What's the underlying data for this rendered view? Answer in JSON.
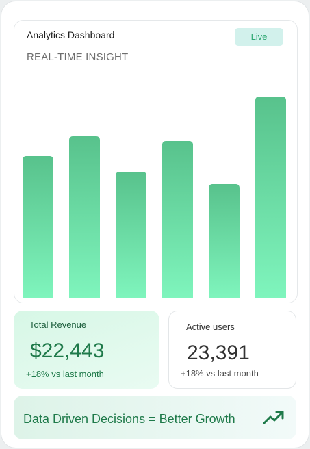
{
  "dashboard": {
    "title": "Analytics Dashboard",
    "subtitle": "REAL-TIME INSIGHT",
    "live_badge": "Live"
  },
  "chart_data": {
    "type": "bar",
    "categories": [
      "",
      "",
      "",
      "",
      "",
      ""
    ],
    "values": [
      208,
      237,
      185,
      230,
      167,
      295
    ],
    "ylim": [
      0,
      295
    ],
    "grid": false,
    "colors": {
      "top": "#58c28c",
      "bottom": "#7ff5bd"
    }
  },
  "stats": {
    "revenue": {
      "label": "Total Revenue",
      "value": "$22,443",
      "change": "+18% vs last month"
    },
    "users": {
      "label": "Active users",
      "value": "23,391",
      "change": "+18% vs last month"
    }
  },
  "banner": {
    "text": "Data Driven Decisions = Better Growth",
    "icon": "trending-up-icon"
  },
  "colors": {
    "accent": "#1f7a4a",
    "bar_top": "#58c28c",
    "bar_bottom": "#7ff5bd",
    "badge_bg": "#d2f1ec"
  }
}
